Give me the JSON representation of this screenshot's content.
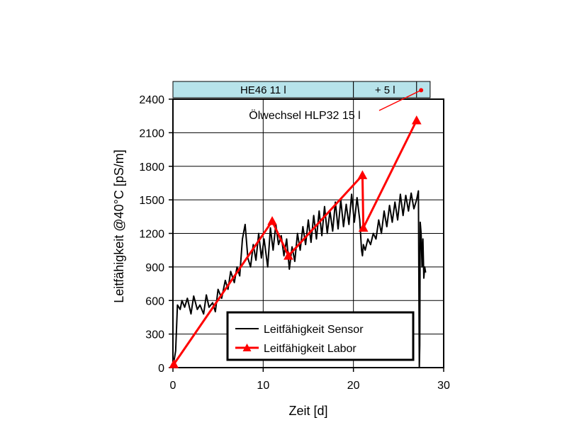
{
  "chart_data": {
    "type": "line",
    "title": "",
    "xlabel": "Zeit [d]",
    "ylabel": "Leitfähigkeit @40°C [pS/m]",
    "xlim": [
      0,
      30
    ],
    "ylim": [
      0,
      2400
    ],
    "xticks": [
      0,
      10,
      20,
      30
    ],
    "yticks": [
      0,
      300,
      600,
      900,
      1200,
      1500,
      1800,
      2100,
      2400
    ],
    "grid": true,
    "legend_position": "bottom-right",
    "phases": [
      {
        "label": "HE46 11 l",
        "start": 0,
        "end": 20
      },
      {
        "label": "+ 5 l",
        "start": 20,
        "end": 27
      },
      {
        "label": "",
        "start": 27,
        "end": 28.5
      }
    ],
    "annotation": {
      "text": "Ölwechsel HLP32 15 l",
      "x": 27.5,
      "y": 2480
    },
    "series": [
      {
        "name": "Leitfähigkeit Sensor",
        "color": "#000000",
        "x": [
          0,
          0.3,
          0.5,
          0.8,
          1.0,
          1.3,
          1.6,
          2.0,
          2.3,
          2.7,
          3.0,
          3.4,
          3.7,
          4.0,
          4.4,
          4.7,
          5.0,
          5.4,
          5.8,
          6.1,
          6.4,
          6.8,
          7.1,
          7.4,
          7.7,
          8.0,
          8.3,
          8.6,
          8.9,
          9.2,
          9.5,
          9.8,
          10.1,
          10.5,
          10.8,
          11.1,
          11.4,
          11.7,
          12.0,
          12.3,
          12.6,
          12.9,
          13.2,
          13.5,
          13.8,
          14.1,
          14.4,
          14.7,
          15.0,
          15.3,
          15.6,
          15.9,
          16.2,
          16.5,
          16.8,
          17.1,
          17.4,
          17.7,
          18.0,
          18.3,
          18.6,
          18.9,
          19.2,
          19.5,
          19.8,
          20.1,
          20.4,
          20.7,
          20.9,
          21.0,
          21.1,
          21.3,
          21.6,
          21.9,
          22.2,
          22.5,
          22.8,
          23.1,
          23.4,
          23.7,
          24.0,
          24.3,
          24.6,
          24.9,
          25.2,
          25.5,
          25.8,
          26.1,
          26.4,
          26.7,
          27.0,
          27.2,
          27.3,
          27.35,
          27.4,
          27.5,
          27.6,
          27.7,
          27.8,
          27.9,
          28.0
        ],
        "values": [
          0,
          150,
          560,
          520,
          600,
          540,
          620,
          480,
          640,
          520,
          560,
          480,
          650,
          540,
          580,
          500,
          700,
          620,
          780,
          700,
          860,
          760,
          900,
          820,
          1150,
          1280,
          980,
          900,
          1100,
          960,
          1200,
          980,
          1150,
          900,
          1250,
          1050,
          1280,
          1100,
          1180,
          1000,
          1150,
          880,
          1080,
          950,
          1200,
          1050,
          1260,
          1100,
          1320,
          1120,
          1360,
          1150,
          1400,
          1180,
          1440,
          1200,
          1400,
          1220,
          1480,
          1240,
          1500,
          1260,
          1460,
          1280,
          1550,
          1300,
          1520,
          1320,
          1050,
          1000,
          1100,
          1050,
          1150,
          1100,
          1200,
          1150,
          1320,
          1200,
          1400,
          1260,
          1450,
          1300,
          1480,
          1320,
          1550,
          1360,
          1540,
          1400,
          1560,
          1420,
          1500,
          1580,
          0,
          200,
          1300,
          1200,
          900,
          1150,
          800,
          900,
          850
        ]
      },
      {
        "name": "Leitfähigkeit Labor",
        "color": "#ff0000",
        "x": [
          0.1,
          11.0,
          12.8,
          21.0,
          21.1,
          27.0
        ],
        "values": [
          30,
          1310,
          1000,
          1720,
          1250,
          2210
        ]
      }
    ]
  }
}
